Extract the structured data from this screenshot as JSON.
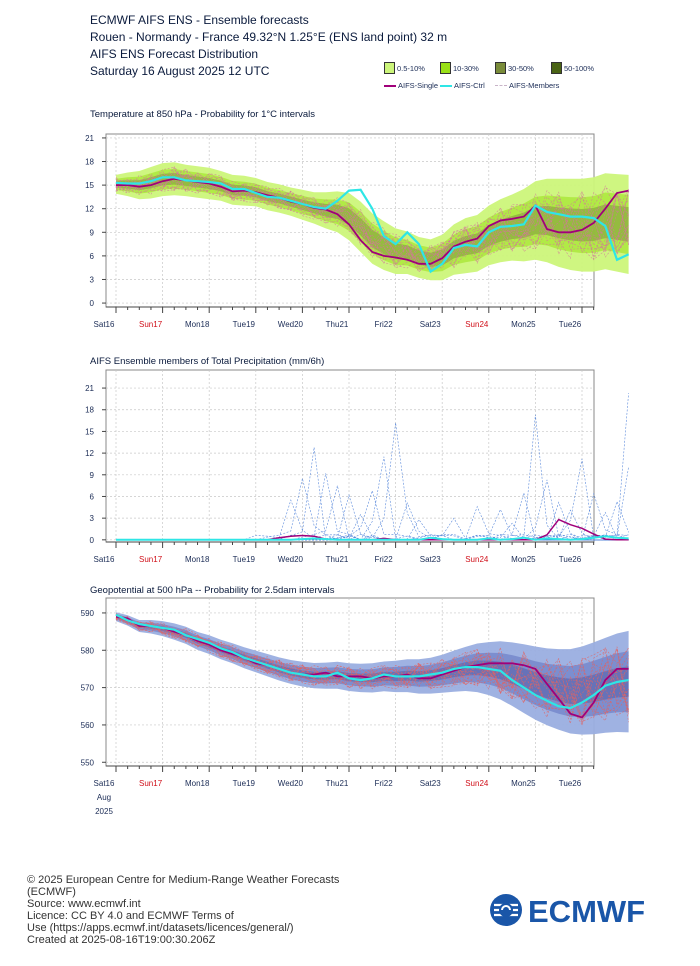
{
  "header": {
    "line1": "ECMWF AIFS ENS - Ensemble forecasts",
    "line2": "Rouen - Normandy - France 49.32°N 1.25°E (ENS land point) 32 m",
    "line3": "AIFS ENS Forecast Distribution",
    "line4": "Saturday 16 August 2025 12 UTC"
  },
  "legend": {
    "boxes": [
      {
        "label": "0.5-10%",
        "color": "#ccf57a"
      },
      {
        "label": "10-30%",
        "color": "#99e016"
      },
      {
        "label": "30-50%",
        "color": "#7a8c3a"
      },
      {
        "label": "50-100%",
        "color": "#4a6314"
      }
    ],
    "lines": [
      {
        "label": "AIFS-Single",
        "color": "#a0007a"
      },
      {
        "label": "AIFS-Ctrl",
        "color": "#2ee6e6"
      },
      {
        "label": "AIFS-Members",
        "color": "#c8b4c8"
      }
    ]
  },
  "days": [
    "Sat16",
    "Sun17",
    "Mon18",
    "Tue19",
    "Wed20",
    "Thu21",
    "Fri22",
    "Sat23",
    "Sun24",
    "Mon25",
    "Tue26"
  ],
  "weekend_color": "#d0101a",
  "weekday_color": "#1a2b55",
  "bottom_axis": {
    "month": "Aug",
    "year": "2025"
  },
  "chart_data": [
    {
      "type": "line",
      "title": "Temperature at 850 hPa - Probability for 1°C intervals",
      "yticks": [
        0,
        3,
        6,
        9,
        12,
        15,
        18,
        21
      ],
      "ylim": [
        -0.5,
        21.5
      ],
      "x_steps": 40,
      "series": [
        {
          "name": "AIFS-Single",
          "color": "#a0007a",
          "values": [
            15,
            15,
            14.8,
            15,
            15.5,
            15.8,
            15.6,
            15.4,
            15.2,
            14.8,
            14.2,
            14.3,
            14.1,
            13.7,
            13.4,
            12.9,
            12.6,
            12.1,
            11.9,
            11.3,
            10,
            8,
            6.5,
            6,
            5.8,
            5.5,
            5,
            5,
            5.7,
            7.2,
            7.8,
            8.2,
            9.8,
            10.5,
            10.7,
            11,
            12.4,
            9.4,
            9,
            9,
            9.3,
            10.2,
            12,
            14,
            14.3
          ]
        },
        {
          "name": "AIFS-Ctrl",
          "color": "#2ee6e6",
          "values": [
            15.3,
            15.2,
            15.2,
            15.5,
            16,
            16,
            15.6,
            15.5,
            15.4,
            15.2,
            14.5,
            14.5,
            14,
            13.5,
            13.4,
            13,
            12.6,
            12.2,
            12,
            13,
            14.3,
            14.4,
            12,
            8.5,
            7.5,
            9,
            7.5,
            4,
            5,
            7,
            7.4,
            7.2,
            9,
            9.7,
            9.8,
            10,
            12.4,
            11.6,
            11.3,
            11,
            11,
            10.8,
            9.8,
            5.5,
            6.2
          ]
        }
      ],
      "band_center": [
        15.1,
        15.1,
        15,
        15.3,
        15.7,
        15.8,
        15.6,
        15.4,
        15.2,
        14.9,
        14.4,
        14.3,
        14.1,
        13.6,
        13.3,
        12.9,
        12.5,
        12.1,
        11.8,
        11.6,
        11,
        9.7,
        8.2,
        7.3,
        6.6,
        6.4,
        5.8,
        5.5,
        5.8,
        6.8,
        7.3,
        7.6,
        8.6,
        9.2,
        9.6,
        9.9,
        10.5,
        10.5,
        10.2,
        10,
        9.9,
        10,
        10.4,
        10.2,
        10
      ],
      "band_halfwidth": [
        1.2,
        1.5,
        1.8,
        2.0,
        2.1,
        2.1,
        2.0,
        2.0,
        2.0,
        1.9,
        1.9,
        1.9,
        1.8,
        1.8,
        1.8,
        1.8,
        1.9,
        2.0,
        2.3,
        2.6,
        3.0,
        3.2,
        3.2,
        3.1,
        2.9,
        2.7,
        2.6,
        2.6,
        2.9,
        3.2,
        3.5,
        3.6,
        3.8,
        4.0,
        4.2,
        4.6,
        5.0,
        5.3,
        5.6,
        5.8,
        5.9,
        6.0,
        6.1,
        6.2,
        6.3
      ]
    },
    {
      "type": "line",
      "title": "AIFS Ensemble members of Total Precipitation (mm/6h)",
      "yticks": [
        0,
        3,
        6,
        9,
        12,
        15,
        18,
        21
      ],
      "ylim": [
        -0.3,
        23.5
      ],
      "x_steps": 40,
      "series": [
        {
          "name": "AIFS-Single",
          "color": "#a0007a",
          "values": [
            0,
            0,
            0,
            0,
            0,
            0,
            0,
            0,
            0,
            0,
            0,
            0,
            0,
            0,
            0.3,
            0.5,
            0.6,
            0.5,
            0.1,
            0,
            0,
            0,
            0,
            0.2,
            0,
            0,
            0,
            0,
            0,
            0,
            0,
            0,
            0,
            0,
            0,
            0,
            0,
            0.7,
            2.8,
            2.1,
            1.6,
            0.8,
            0.1,
            0,
            0
          ]
        },
        {
          "name": "AIFS-Ctrl",
          "color": "#2ee6e6",
          "values": [
            0,
            0,
            0,
            0,
            0,
            0,
            0,
            0,
            0,
            0,
            0,
            0,
            0,
            0,
            0,
            0,
            0.1,
            0.2,
            0.1,
            0,
            0,
            0,
            0,
            0,
            0,
            0,
            0,
            0.3,
            0.1,
            0,
            0,
            0,
            0.2,
            0,
            0.1,
            0.3,
            0,
            0.2,
            0.1,
            0,
            0.1,
            0.3,
            0.5,
            0.3,
            0.2
          ]
        }
      ],
      "member_peaks": [
        {
          "step": 17,
          "value": 12.8
        },
        {
          "step": 16,
          "value": 8.5
        },
        {
          "step": 18,
          "value": 9.2
        },
        {
          "step": 19,
          "value": 7.5
        },
        {
          "step": 15,
          "value": 5.5
        },
        {
          "step": 20,
          "value": 6.2
        },
        {
          "step": 23,
          "value": 11.5
        },
        {
          "step": 24,
          "value": 16.2
        },
        {
          "step": 22,
          "value": 6.8
        },
        {
          "step": 25,
          "value": 5.1
        },
        {
          "step": 26,
          "value": 2.8
        },
        {
          "step": 29,
          "value": 3.0
        },
        {
          "step": 31,
          "value": 4.6
        },
        {
          "step": 33,
          "value": 4.2
        },
        {
          "step": 35,
          "value": 6.5
        },
        {
          "step": 36,
          "value": 17.3
        },
        {
          "step": 37,
          "value": 8.3
        },
        {
          "step": 38,
          "value": 5.2
        },
        {
          "step": 40,
          "value": 11.2
        },
        {
          "step": 41,
          "value": 6.4
        },
        {
          "step": 42,
          "value": 3.8
        },
        {
          "step": 43,
          "value": 5.3
        },
        {
          "step": 44,
          "value": 20.3
        },
        {
          "step": 44,
          "value": 10.1
        },
        {
          "step": 39,
          "value": 4.1
        },
        {
          "step": 34,
          "value": 2.3
        },
        {
          "step": 21,
          "value": 3.5
        }
      ]
    },
    {
      "type": "line",
      "title": "Geopotential at 500 hPa -- Probability for 2.5dam intervals",
      "yticks": [
        550,
        560,
        570,
        580,
        590
      ],
      "ylim": [
        549,
        594
      ],
      "x_steps": 40,
      "series": [
        {
          "name": "AIFS-Single",
          "color": "#a0007a",
          "values": [
            589,
            588.5,
            586.5,
            586.5,
            586,
            585,
            584,
            582.5,
            581.5,
            580,
            579,
            578,
            576.5,
            576,
            575,
            574,
            573.5,
            573.5,
            574,
            573,
            573,
            573,
            572.5,
            573,
            573,
            573.5,
            572.5,
            572.5,
            573.5,
            574.5,
            575.5,
            576,
            576.5,
            576.5,
            576.5,
            576,
            575,
            571,
            567,
            563,
            562,
            566,
            572,
            575,
            575
          ]
        },
        {
          "name": "AIFS-Ctrl",
          "color": "#2ee6e6",
          "values": [
            589.5,
            588,
            587,
            586.5,
            586,
            585.5,
            584,
            583,
            582,
            580.5,
            579.5,
            578,
            577,
            576,
            575,
            574,
            573.5,
            573,
            573,
            574,
            572.5,
            572,
            572.5,
            573.5,
            573,
            573,
            573,
            573.5,
            574,
            575,
            575.5,
            575.5,
            575,
            574.5,
            572,
            570,
            568,
            566.5,
            565,
            564.5,
            566,
            568,
            570.5,
            571.5,
            572
          ]
        }
      ],
      "band_center": [
        589,
        588,
        586.5,
        586.3,
        585.8,
        585,
        584,
        582.5,
        581.5,
        580.2,
        579.2,
        578,
        577,
        576,
        575,
        574.2,
        573.6,
        573.2,
        573.2,
        573.3,
        572.8,
        572.6,
        572.6,
        573,
        573,
        573.2,
        573,
        573.2,
        573.7,
        574.4,
        575,
        575.3,
        575.1,
        574.6,
        573.6,
        572.4,
        571.2,
        570.2,
        569.5,
        569,
        569.2,
        569.8,
        570.6,
        571.3,
        571.6
      ],
      "band_halfwidth": [
        1.2,
        1.4,
        1.6,
        1.8,
        2.0,
        2.2,
        2.3,
        2.4,
        2.5,
        2.6,
        2.7,
        2.8,
        2.9,
        3.0,
        3.1,
        3.2,
        3.3,
        3.4,
        3.5,
        3.6,
        3.7,
        3.8,
        3.9,
        4.0,
        4.2,
        4.4,
        4.6,
        4.8,
        5.1,
        5.5,
        5.9,
        6.5,
        7.1,
        7.8,
        8.5,
        9.2,
        9.8,
        10.3,
        10.8,
        11.3,
        11.8,
        12.3,
        12.7,
        13.2,
        13.6
      ]
    }
  ],
  "footer": {
    "l1": "© 2025 European Centre for Medium-Range Weather Forecasts",
    "l2": "(ECMWF)",
    "l3": "Source: www.ecmwf.int",
    "l4": "Licence: CC BY 4.0 and ECMWF Terms of",
    "l5": "Use (https://apps.ecmwf.int/datasets/licences/general/)",
    "l6": "Created at 2025-08-16T19:00:30.206Z"
  },
  "logo": {
    "text": "ECMWF",
    "color": "#1a56a8"
  }
}
